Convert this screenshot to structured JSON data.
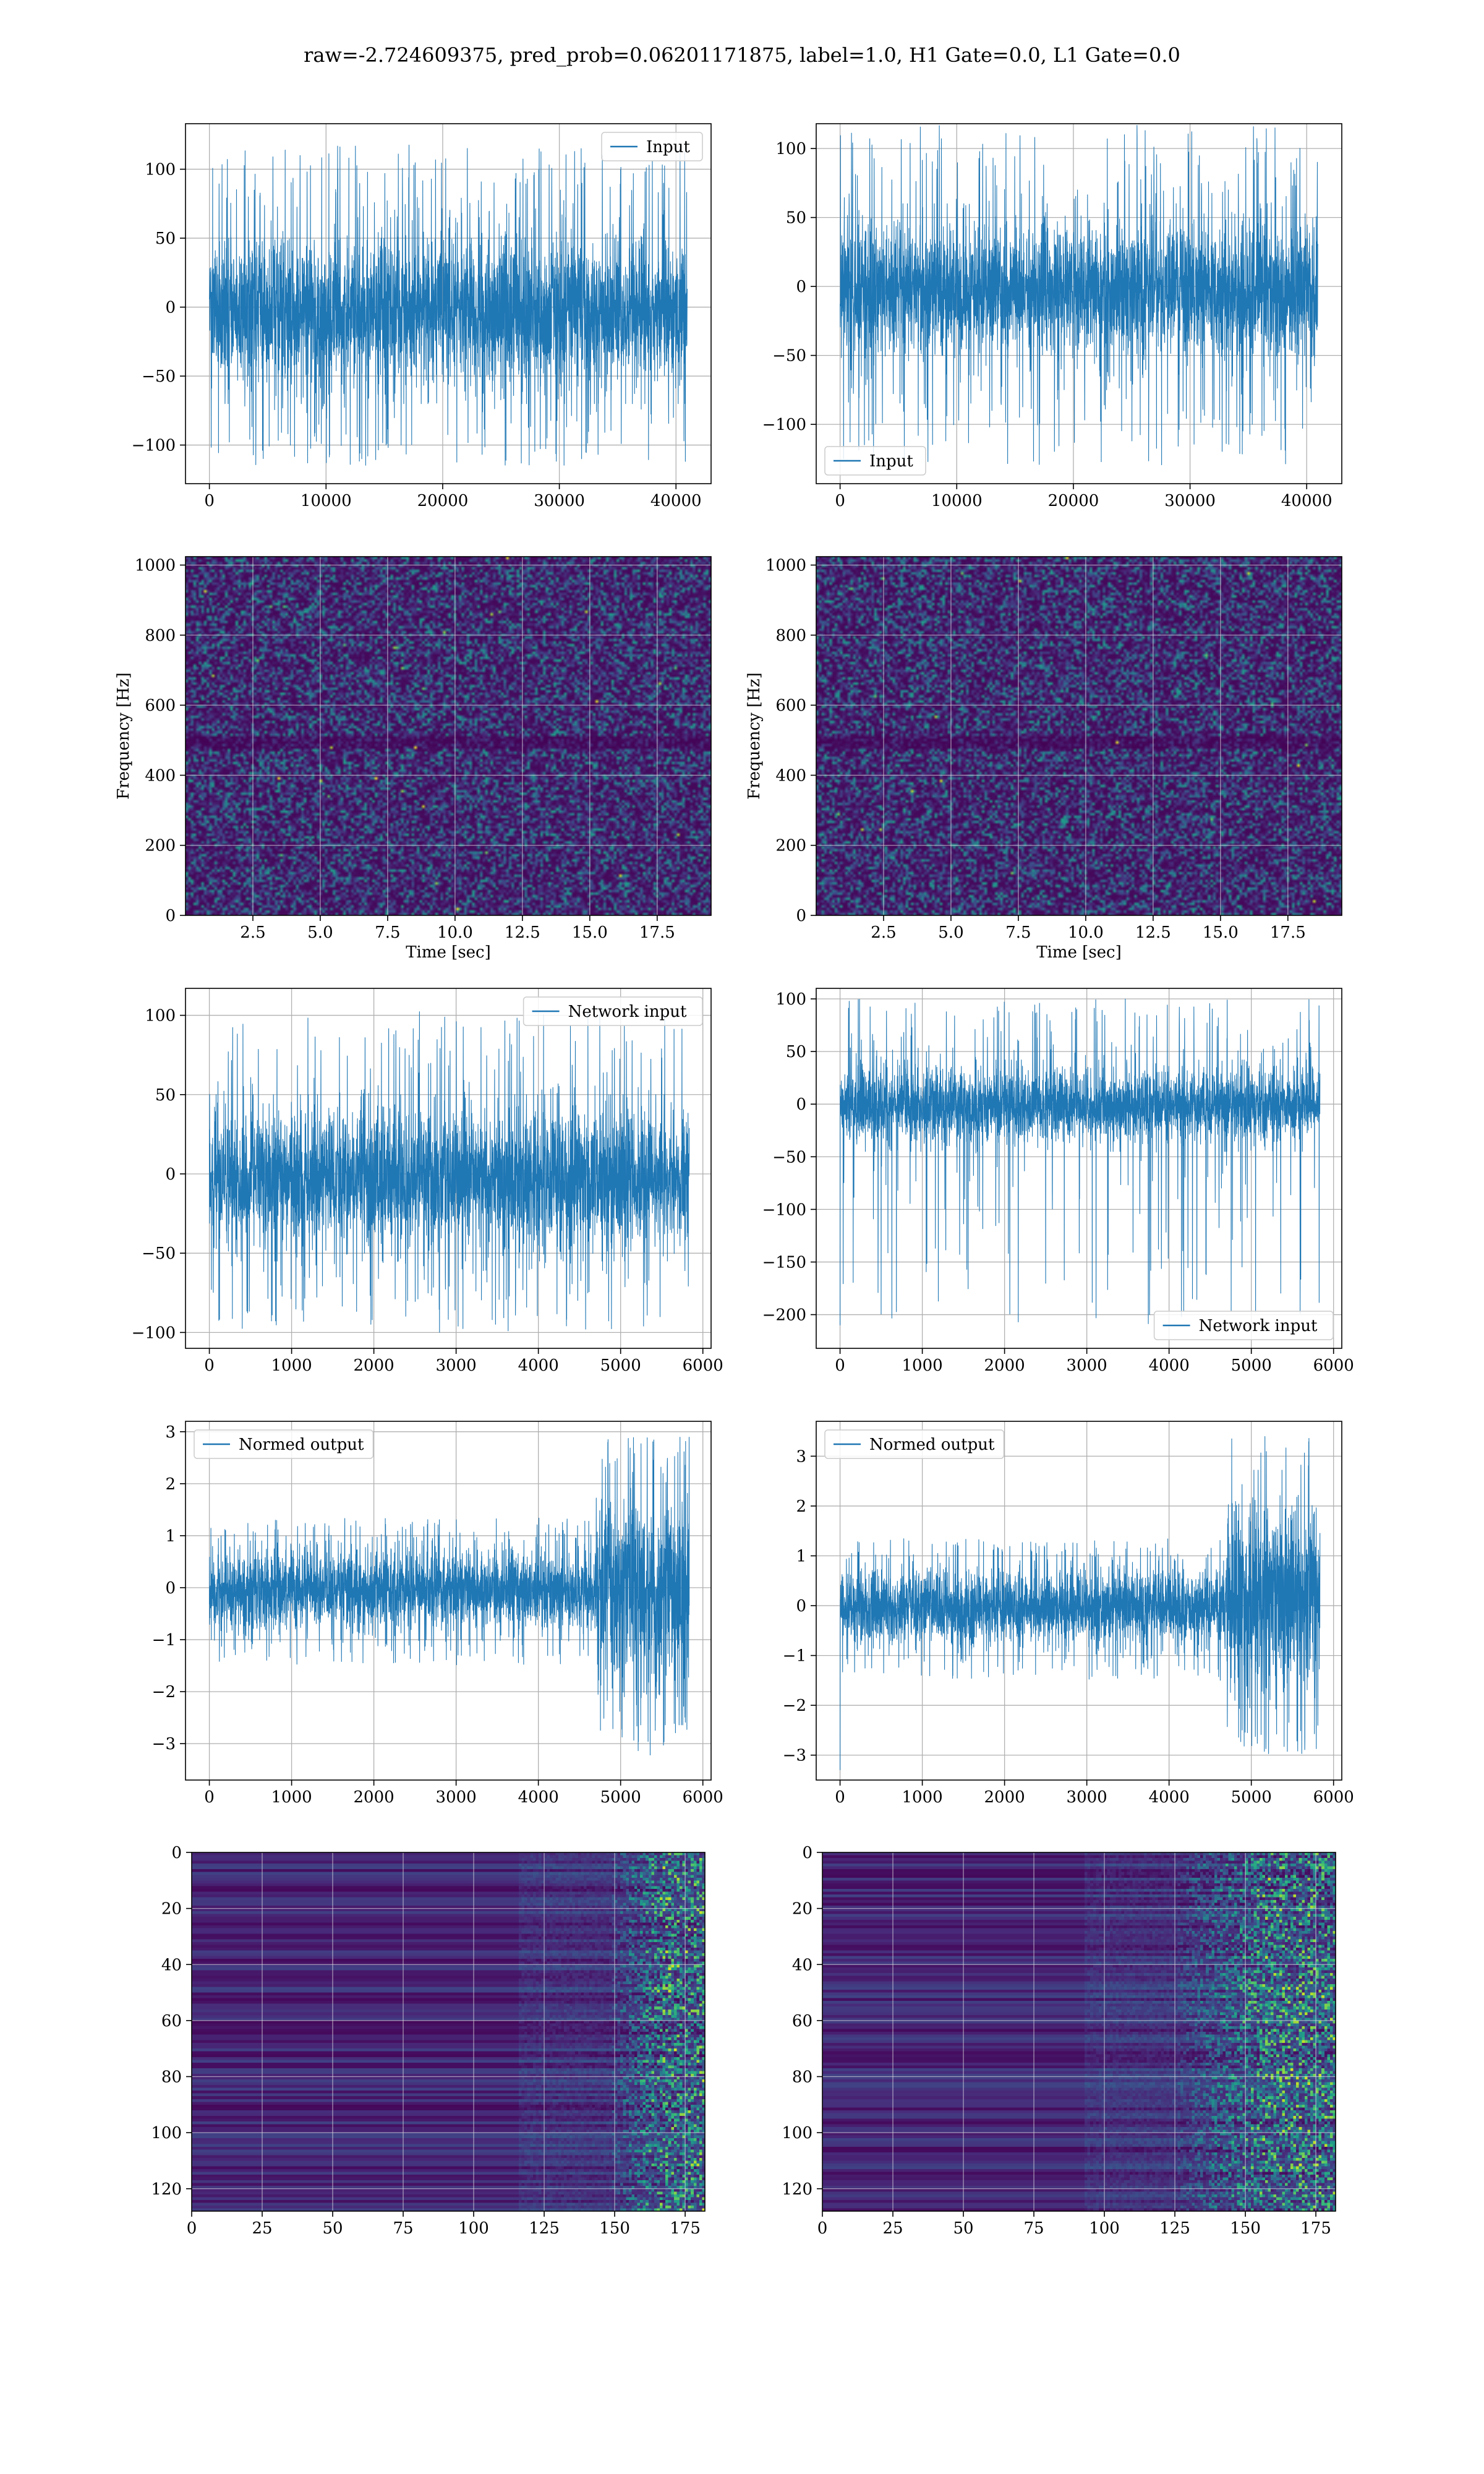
{
  "figure": {
    "suptitle": "raw=-2.724609375, pred_prob=0.06201171875, label=1.0, H1 Gate=0.0, L1 Gate=0.0",
    "colors": {
      "series": "#1f77b4",
      "viridis_dark": "#440154",
      "viridis_mid": "#21918c",
      "viridis_bright": "#5ec962",
      "viridis_yellow": "#fde725"
    }
  },
  "chart_data": [
    {
      "id": "input-h1",
      "type": "line",
      "legend": {
        "label": "Input",
        "loc": "upper-right"
      },
      "xlim": [
        -2048,
        43008
      ],
      "ylim": [
        -128,
        133
      ],
      "xticks": [
        0,
        10000,
        20000,
        30000,
        40000
      ],
      "xticklabels": [
        "0",
        "10000",
        "20000",
        "30000",
        "40000"
      ],
      "yticks": [
        -100,
        -50,
        0,
        50,
        100
      ],
      "yticklabels": [
        "−100",
        "−50",
        "0",
        "50",
        "100"
      ],
      "signal": {
        "n": 40960,
        "envelope_max": 65,
        "envelope_min": -70,
        "peak_max": 118,
        "peak_min": -115
      },
      "grid": true
    },
    {
      "id": "input-l1",
      "type": "line",
      "legend": {
        "label": "Input",
        "loc": "lower-left"
      },
      "xlim": [
        -2048,
        43008
      ],
      "ylim": [
        -143,
        118
      ],
      "xticks": [
        0,
        10000,
        20000,
        30000,
        40000
      ],
      "xticklabels": [
        "0",
        "10000",
        "20000",
        "30000",
        "40000"
      ],
      "yticks": [
        -100,
        -50,
        0,
        50,
        100
      ],
      "yticklabels": [
        "−100",
        "−50",
        "0",
        "50",
        "100"
      ],
      "signal": {
        "n": 40960,
        "envelope_max": 60,
        "envelope_min": -65,
        "peak_max": 118,
        "peak_min": -130
      },
      "grid": true
    },
    {
      "id": "spec-h1",
      "type": "heatmap",
      "xlabel": "Time [sec]",
      "ylabel": "Frequency [Hz]",
      "xlim": [
        0,
        19.5
      ],
      "ylim": [
        0,
        1024
      ],
      "xticks": [
        2.5,
        5.0,
        7.5,
        10.0,
        12.5,
        15.0,
        17.5
      ],
      "xticklabels": [
        "2.5",
        "5.0",
        "7.5",
        "10.0",
        "12.5",
        "15.0",
        "17.5"
      ],
      "yticks": [
        0,
        200,
        400,
        600,
        800,
        1000
      ],
      "yticklabels": [
        "0",
        "200",
        "400",
        "600",
        "800",
        "1000"
      ],
      "colormap": "viridis",
      "grid": true
    },
    {
      "id": "spec-l1",
      "type": "heatmap",
      "xlabel": "Time [sec]",
      "ylabel": "Frequency [Hz]",
      "xlim": [
        0,
        19.5
      ],
      "ylim": [
        0,
        1024
      ],
      "xticks": [
        2.5,
        5.0,
        7.5,
        10.0,
        12.5,
        15.0,
        17.5
      ],
      "xticklabels": [
        "2.5",
        "5.0",
        "7.5",
        "10.0",
        "12.5",
        "15.0",
        "17.5"
      ],
      "yticks": [
        0,
        200,
        400,
        600,
        800,
        1000
      ],
      "yticklabels": [
        "0",
        "200",
        "400",
        "600",
        "800",
        "1000"
      ],
      "colormap": "viridis",
      "grid": true
    },
    {
      "id": "netin-h1",
      "type": "line",
      "legend": {
        "label": "Network input",
        "loc": "upper-right"
      },
      "xlim": [
        -290,
        6100
      ],
      "ylim": [
        -110,
        117
      ],
      "xticks": [
        0,
        1000,
        2000,
        3000,
        4000,
        5000,
        6000
      ],
      "xticklabels": [
        "0",
        "1000",
        "2000",
        "3000",
        "4000",
        "5000",
        "6000"
      ],
      "yticks": [
        -100,
        -50,
        0,
        50,
        100
      ],
      "yticklabels": [
        "−100",
        "−50",
        "0",
        "50",
        "100"
      ],
      "signal": {
        "n": 5835,
        "envelope_max": 50,
        "envelope_min": -55,
        "peak_max": 105,
        "peak_min": -100
      },
      "grid": true
    },
    {
      "id": "netin-l1",
      "type": "line",
      "legend": {
        "label": "Network input",
        "loc": "lower-right"
      },
      "xlim": [
        -290,
        6100
      ],
      "ylim": [
        -232,
        110
      ],
      "xticks": [
        0,
        1000,
        2000,
        3000,
        4000,
        5000,
        6000
      ],
      "xticklabels": [
        "0",
        "1000",
        "2000",
        "3000",
        "4000",
        "5000",
        "6000"
      ],
      "yticks": [
        -200,
        -150,
        -100,
        -50,
        0,
        50,
        100
      ],
      "yticklabels": [
        "−200",
        "−150",
        "−100",
        "−50",
        "0",
        "50",
        "100"
      ],
      "signal": {
        "n": 5835,
        "envelope_max": 42,
        "envelope_min": -45,
        "peak_max": 100,
        "peak_min": -210,
        "spike_at_start": -210
      },
      "grid": true
    },
    {
      "id": "normed-h1",
      "type": "line",
      "legend": {
        "label": "Normed output",
        "loc": "upper-left"
      },
      "xlim": [
        -290,
        6100
      ],
      "ylim": [
        -3.7,
        3.2
      ],
      "xticks": [
        0,
        1000,
        2000,
        3000,
        4000,
        5000,
        6000
      ],
      "xticklabels": [
        "0",
        "1000",
        "2000",
        "3000",
        "4000",
        "5000",
        "6000"
      ],
      "yticks": [
        -3,
        -2,
        -1,
        0,
        1,
        2,
        3
      ],
      "yticklabels": [
        "−3",
        "−2",
        "−1",
        "0",
        "1",
        "2",
        "3"
      ],
      "signal": {
        "n": 5835,
        "envelope_max": 0.9,
        "envelope_min": -1.0,
        "burst_start": 4700,
        "burst_max": 2.9,
        "burst_min": -3.3
      },
      "grid": true
    },
    {
      "id": "normed-l1",
      "type": "line",
      "legend": {
        "label": "Normed output",
        "loc": "upper-left"
      },
      "xlim": [
        -290,
        6100
      ],
      "ylim": [
        -3.5,
        3.7
      ],
      "xticks": [
        0,
        1000,
        2000,
        3000,
        4000,
        5000,
        6000
      ],
      "xticklabels": [
        "0",
        "1000",
        "2000",
        "3000",
        "4000",
        "5000",
        "6000"
      ],
      "yticks": [
        -3,
        -2,
        -1,
        0,
        1,
        2,
        3
      ],
      "yticklabels": [
        "−3",
        "−2",
        "−1",
        "0",
        "1",
        "2",
        "3"
      ],
      "signal": {
        "n": 5835,
        "envelope_max": 0.9,
        "envelope_min": -1.0,
        "burst_start": 4700,
        "burst_max": 3.4,
        "burst_min": -3.0,
        "spike_at_start": -3.3
      },
      "grid": true
    },
    {
      "id": "feat-h1",
      "type": "heatmap",
      "xlim": [
        0,
        182
      ],
      "ylim": [
        128,
        0
      ],
      "xticks": [
        0,
        25,
        50,
        75,
        100,
        125,
        150,
        175
      ],
      "xticklabels": [
        "0",
        "25",
        "50",
        "75",
        "100",
        "125",
        "150",
        "175"
      ],
      "yticks": [
        0,
        20,
        40,
        60,
        80,
        100,
        120
      ],
      "yticklabels": [
        "0",
        "20",
        "40",
        "60",
        "80",
        "100",
        "120"
      ],
      "colormap": "viridis",
      "activity_start": 148,
      "grid": true
    },
    {
      "id": "feat-l1",
      "type": "heatmap",
      "xlim": [
        0,
        182
      ],
      "ylim": [
        128,
        0
      ],
      "xticks": [
        0,
        25,
        50,
        75,
        100,
        125,
        150,
        175
      ],
      "xticklabels": [
        "0",
        "25",
        "50",
        "75",
        "100",
        "125",
        "150",
        "175"
      ],
      "yticks": [
        0,
        20,
        40,
        60,
        80,
        100,
        120
      ],
      "yticklabels": [
        "0",
        "20",
        "40",
        "60",
        "80",
        "100",
        "120"
      ],
      "colormap": "viridis",
      "activity_start": 125,
      "grid": true
    }
  ]
}
